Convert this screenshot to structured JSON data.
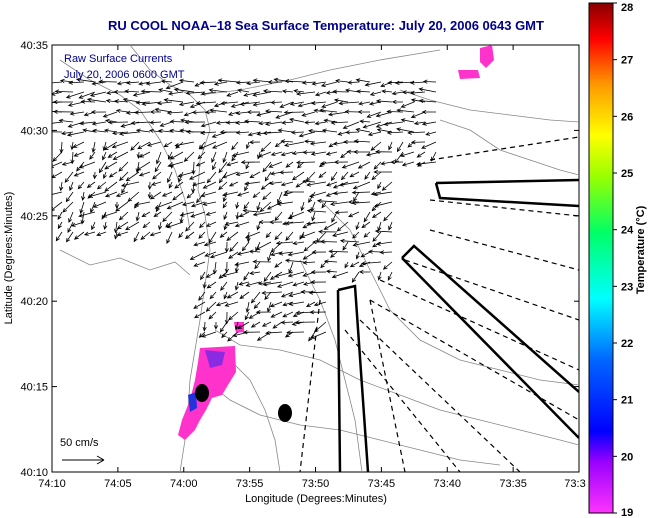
{
  "chart_data": {
    "type": "map",
    "title": "RU COOL  NOAA–18  Sea Surface Temperature:  July 20, 2006 0643 GMT",
    "xlabel": "Longitude (Degrees:Minutes)",
    "ylabel": "Latitude (Degrees:Minutes)",
    "x_ticks": [
      "74:10",
      "74:05",
      "74:00",
      "73:55",
      "73:50",
      "73:45",
      "73:40",
      "73:35",
      "73:3"
    ],
    "y_ticks": [
      "40:35",
      "40:30",
      "40:25",
      "40:20",
      "40:15",
      "40:10"
    ],
    "xlim_deg_west": [
      74.1667,
      73.5
    ],
    "ylim_deg_north": [
      40.1667,
      40.5833
    ],
    "colorbar": {
      "label": "Temperature (°C)",
      "ticks": [
        "28",
        "27",
        "26",
        "25",
        "24",
        "23",
        "22",
        "21",
        "20",
        "19"
      ],
      "range": [
        19,
        28
      ],
      "colormap": "jet-magenta"
    },
    "annotations": [
      "Raw Surface Currents",
      "July 20, 2006 0600 GMT"
    ],
    "scale_label": "50 cm/s",
    "colors": {
      "title": "#00008b",
      "land_contour": "#888888",
      "vectors": "#000000",
      "sst_min": "#ff33cc"
    },
    "sst_patches_celsius": [
      19,
      19.5,
      20,
      21
    ]
  }
}
